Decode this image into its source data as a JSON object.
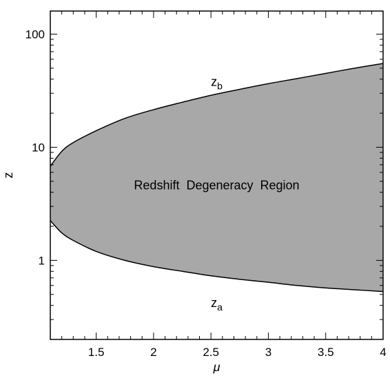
{
  "chart_data": {
    "type": "area",
    "xlabel": "μ",
    "ylabel": "z",
    "xlim": [
      1.1,
      4.0
    ],
    "ylim": [
      0.2,
      160
    ],
    "yscale": "log",
    "grid": false,
    "x_ticks": [
      1.5,
      2,
      2.5,
      3,
      3.5,
      4
    ],
    "x_tick_labels": [
      "1.5",
      "2",
      "2.5",
      "3",
      "3.5",
      "4"
    ],
    "y_ticks": [
      1,
      10,
      100
    ],
    "y_tick_labels": [
      "1",
      "10",
      "100"
    ],
    "fill_color": "#a8a8a8",
    "series": [
      {
        "name": "z_b",
        "x": [
          1.1,
          1.2,
          1.3,
          1.5,
          1.75,
          2.0,
          2.25,
          2.5,
          2.75,
          3.0,
          3.25,
          3.5,
          3.75,
          4.0
        ],
        "values": [
          6.8,
          9.2,
          11.0,
          14.0,
          18.0,
          21.5,
          25.0,
          28.8,
          32.5,
          36.5,
          40.5,
          45.0,
          50.0,
          55.0
        ]
      },
      {
        "name": "z_a",
        "x": [
          1.1,
          1.2,
          1.3,
          1.5,
          1.75,
          2.0,
          2.25,
          2.5,
          2.75,
          3.0,
          3.25,
          3.5,
          3.75,
          4.0
        ],
        "values": [
          2.25,
          1.75,
          1.5,
          1.2,
          1.0,
          0.88,
          0.8,
          0.73,
          0.68,
          0.64,
          0.6,
          0.57,
          0.55,
          0.53
        ]
      }
    ],
    "annotations": [
      {
        "text": "Redshift  Degeneracy  Region",
        "x": 2.55,
        "y": 4.6
      },
      {
        "text": "z",
        "sub": "b",
        "x": 2.55,
        "y": 38
      },
      {
        "text": "z",
        "sub": "a",
        "x": 2.55,
        "y": 0.42
      }
    ]
  }
}
